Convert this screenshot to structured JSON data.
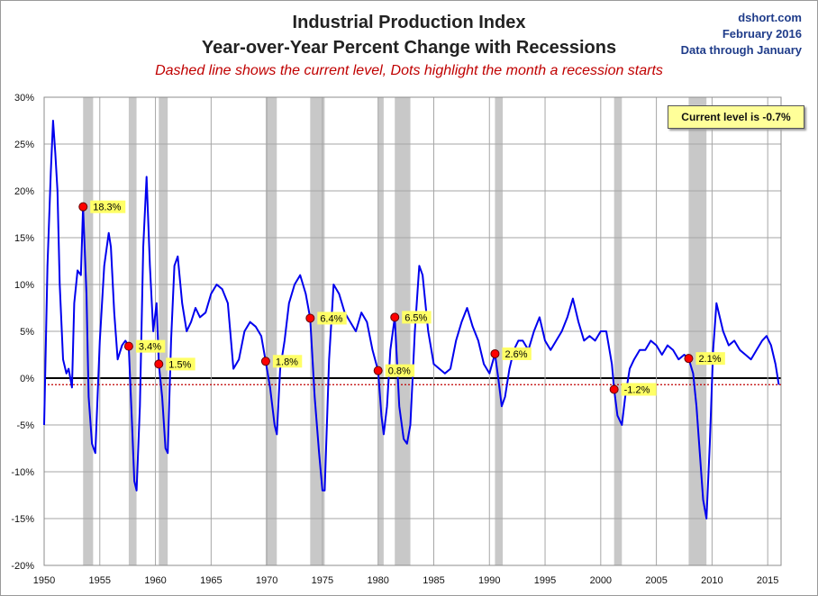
{
  "header": {
    "title_line1": "Industrial Production Index",
    "title_line2": "Year-over-Year Percent Change with Recessions",
    "subtitle": "Dashed line shows the current level, Dots highlight the month a recession starts",
    "source": "dshort.com",
    "date": "February 2016",
    "data_note": "Data through January"
  },
  "colors": {
    "line": "#0000ee",
    "recession": "#c8c8c8",
    "dot": "#ff0000",
    "label_bg": "#ffff66",
    "dashed": "#c00000"
  },
  "chart_data": {
    "type": "line",
    "title": "Industrial Production Index — Year-over-Year Percent Change with Recessions",
    "xlim": [
      1950,
      2016.2
    ],
    "ylim": [
      -20,
      30
    ],
    "y_ticks": [
      -20,
      -15,
      -10,
      -5,
      0,
      5,
      10,
      15,
      20,
      25,
      30
    ],
    "y_tick_labels": [
      "-20%",
      "-15%",
      "-10%",
      "-5%",
      "0%",
      "5%",
      "10%",
      "15%",
      "20%",
      "25%",
      "30%"
    ],
    "x_ticks": [
      1950,
      1955,
      1960,
      1965,
      1970,
      1975,
      1980,
      1985,
      1990,
      1995,
      2000,
      2005,
      2010,
      2015
    ],
    "x_tick_labels": [
      "1950",
      "1955",
      "1960",
      "1965",
      "1970",
      "1975",
      "1980",
      "1985",
      "1990",
      "1995",
      "2000",
      "2005",
      "2010",
      "2015"
    ],
    "grid": true,
    "current_level": -0.7,
    "current_level_label": "Current level is -0.7%",
    "recessions": [
      [
        1953.5,
        1954.4
      ],
      [
        1957.6,
        1958.3
      ],
      [
        1960.3,
        1961.1
      ],
      [
        1969.9,
        1970.9
      ],
      [
        1973.9,
        1975.2
      ],
      [
        1980.0,
        1980.5
      ],
      [
        1981.5,
        1982.9
      ],
      [
        1990.5,
        1991.2
      ],
      [
        2001.2,
        2001.9
      ],
      [
        2007.9,
        2009.5
      ]
    ],
    "recession_start_markers": [
      {
        "x": 1953.5,
        "y": 18.3,
        "label": "18.3%"
      },
      {
        "x": 1957.6,
        "y": 3.4,
        "label": "3.4%"
      },
      {
        "x": 1960.3,
        "y": 1.5,
        "label": "1.5%"
      },
      {
        "x": 1969.9,
        "y": 1.8,
        "label": "1.8%"
      },
      {
        "x": 1973.9,
        "y": 6.4,
        "label": "6.4%"
      },
      {
        "x": 1980.0,
        "y": 0.8,
        "label": "0.8%"
      },
      {
        "x": 1981.5,
        "y": 6.5,
        "label": "6.5%"
      },
      {
        "x": 1990.5,
        "y": 2.6,
        "label": "2.6%"
      },
      {
        "x": 2001.2,
        "y": -1.2,
        "label": "-1.2%"
      },
      {
        "x": 2007.9,
        "y": 2.1,
        "label": "2.1%"
      }
    ],
    "series": [
      {
        "name": "Industrial Production YoY %",
        "x": [
          1950.0,
          1950.3,
          1950.6,
          1950.8,
          1951.0,
          1951.2,
          1951.4,
          1951.7,
          1952.0,
          1952.2,
          1952.5,
          1952.7,
          1953.0,
          1953.3,
          1953.5,
          1953.8,
          1954.0,
          1954.3,
          1954.6,
          1955.0,
          1955.4,
          1955.8,
          1956.0,
          1956.3,
          1956.6,
          1957.0,
          1957.3,
          1957.6,
          1957.9,
          1958.1,
          1958.3,
          1958.6,
          1958.9,
          1959.2,
          1959.5,
          1959.8,
          1960.1,
          1960.3,
          1960.6,
          1960.9,
          1961.1,
          1961.4,
          1961.7,
          1962.0,
          1962.4,
          1962.8,
          1963.2,
          1963.6,
          1964.0,
          1964.5,
          1965.0,
          1965.5,
          1966.0,
          1966.5,
          1967.0,
          1967.5,
          1968.0,
          1968.5,
          1969.0,
          1969.5,
          1969.9,
          1970.3,
          1970.7,
          1970.9,
          1971.2,
          1971.6,
          1972.0,
          1972.5,
          1973.0,
          1973.5,
          1973.9,
          1974.3,
          1974.7,
          1975.0,
          1975.2,
          1975.6,
          1976.0,
          1976.5,
          1977.0,
          1977.5,
          1978.0,
          1978.5,
          1979.0,
          1979.5,
          1980.0,
          1980.3,
          1980.5,
          1980.8,
          1981.1,
          1981.5,
          1981.9,
          1982.3,
          1982.6,
          1982.9,
          1983.3,
          1983.7,
          1984.0,
          1984.5,
          1985.0,
          1985.5,
          1986.0,
          1986.5,
          1987.0,
          1987.5,
          1988.0,
          1988.5,
          1989.0,
          1989.5,
          1990.0,
          1990.5,
          1990.8,
          1991.1,
          1991.4,
          1991.8,
          1992.2,
          1992.6,
          1993.0,
          1993.5,
          1994.0,
          1994.5,
          1995.0,
          1995.5,
          1996.0,
          1996.5,
          1997.0,
          1997.5,
          1998.0,
          1998.5,
          1999.0,
          1999.5,
          2000.0,
          2000.5,
          2001.0,
          2001.2,
          2001.5,
          2001.9,
          2002.2,
          2002.6,
          2003.0,
          2003.5,
          2004.0,
          2004.5,
          2005.0,
          2005.5,
          2006.0,
          2006.5,
          2007.0,
          2007.5,
          2007.9,
          2008.3,
          2008.6,
          2008.9,
          2009.2,
          2009.5,
          2009.8,
          2010.1,
          2010.4,
          2010.7,
          2011.0,
          2011.5,
          2012.0,
          2012.5,
          2013.0,
          2013.5,
          2014.0,
          2014.5,
          2014.9,
          2015.3,
          2015.7,
          2016.0
        ],
        "values": [
          -5.0,
          12.0,
          22.0,
          27.5,
          24.0,
          20.0,
          10.0,
          2.0,
          0.5,
          1.0,
          -1.0,
          8.0,
          11.5,
          11.0,
          18.3,
          9.0,
          -2.0,
          -7.0,
          -8.0,
          4.0,
          12.0,
          15.5,
          14.0,
          7.0,
          2.0,
          3.5,
          4.0,
          3.4,
          -5.0,
          -11.0,
          -12.0,
          -3.0,
          14.0,
          21.5,
          12.0,
          5.0,
          8.0,
          1.5,
          -2.0,
          -7.5,
          -8.0,
          4.0,
          12.0,
          13.0,
          8.0,
          5.0,
          6.0,
          7.5,
          6.5,
          7.0,
          9.0,
          10.0,
          9.5,
          8.0,
          1.0,
          2.0,
          5.0,
          6.0,
          5.5,
          4.5,
          1.8,
          -1.0,
          -5.0,
          -6.0,
          1.0,
          4.0,
          8.0,
          10.0,
          11.0,
          9.0,
          6.4,
          -2.0,
          -8.0,
          -12.0,
          -12.0,
          2.0,
          10.0,
          9.0,
          7.0,
          6.0,
          5.0,
          7.0,
          6.0,
          3.0,
          0.8,
          -4.0,
          -6.0,
          -3.0,
          3.0,
          6.5,
          -3.0,
          -6.5,
          -7.0,
          -5.0,
          5.0,
          12.0,
          11.0,
          5.0,
          1.5,
          1.0,
          0.5,
          1.0,
          4.0,
          6.0,
          7.5,
          5.5,
          4.0,
          1.5,
          0.5,
          2.6,
          0.0,
          -3.0,
          -2.0,
          1.0,
          3.0,
          4.0,
          4.0,
          3.0,
          5.0,
          6.5,
          4.0,
          3.0,
          4.0,
          5.0,
          6.5,
          8.5,
          6.0,
          4.0,
          4.5,
          4.0,
          5.0,
          5.0,
          1.5,
          -1.2,
          -4.0,
          -5.0,
          -2.0,
          1.0,
          2.0,
          3.0,
          3.0,
          4.0,
          3.5,
          2.5,
          3.5,
          3.0,
          2.0,
          2.5,
          2.1,
          0.5,
          -3.0,
          -8.0,
          -13.0,
          -15.0,
          -7.0,
          3.0,
          8.0,
          6.5,
          5.0,
          3.5,
          4.0,
          3.0,
          2.5,
          2.0,
          3.0,
          4.0,
          4.5,
          3.5,
          1.5,
          -0.7
        ]
      }
    ]
  }
}
